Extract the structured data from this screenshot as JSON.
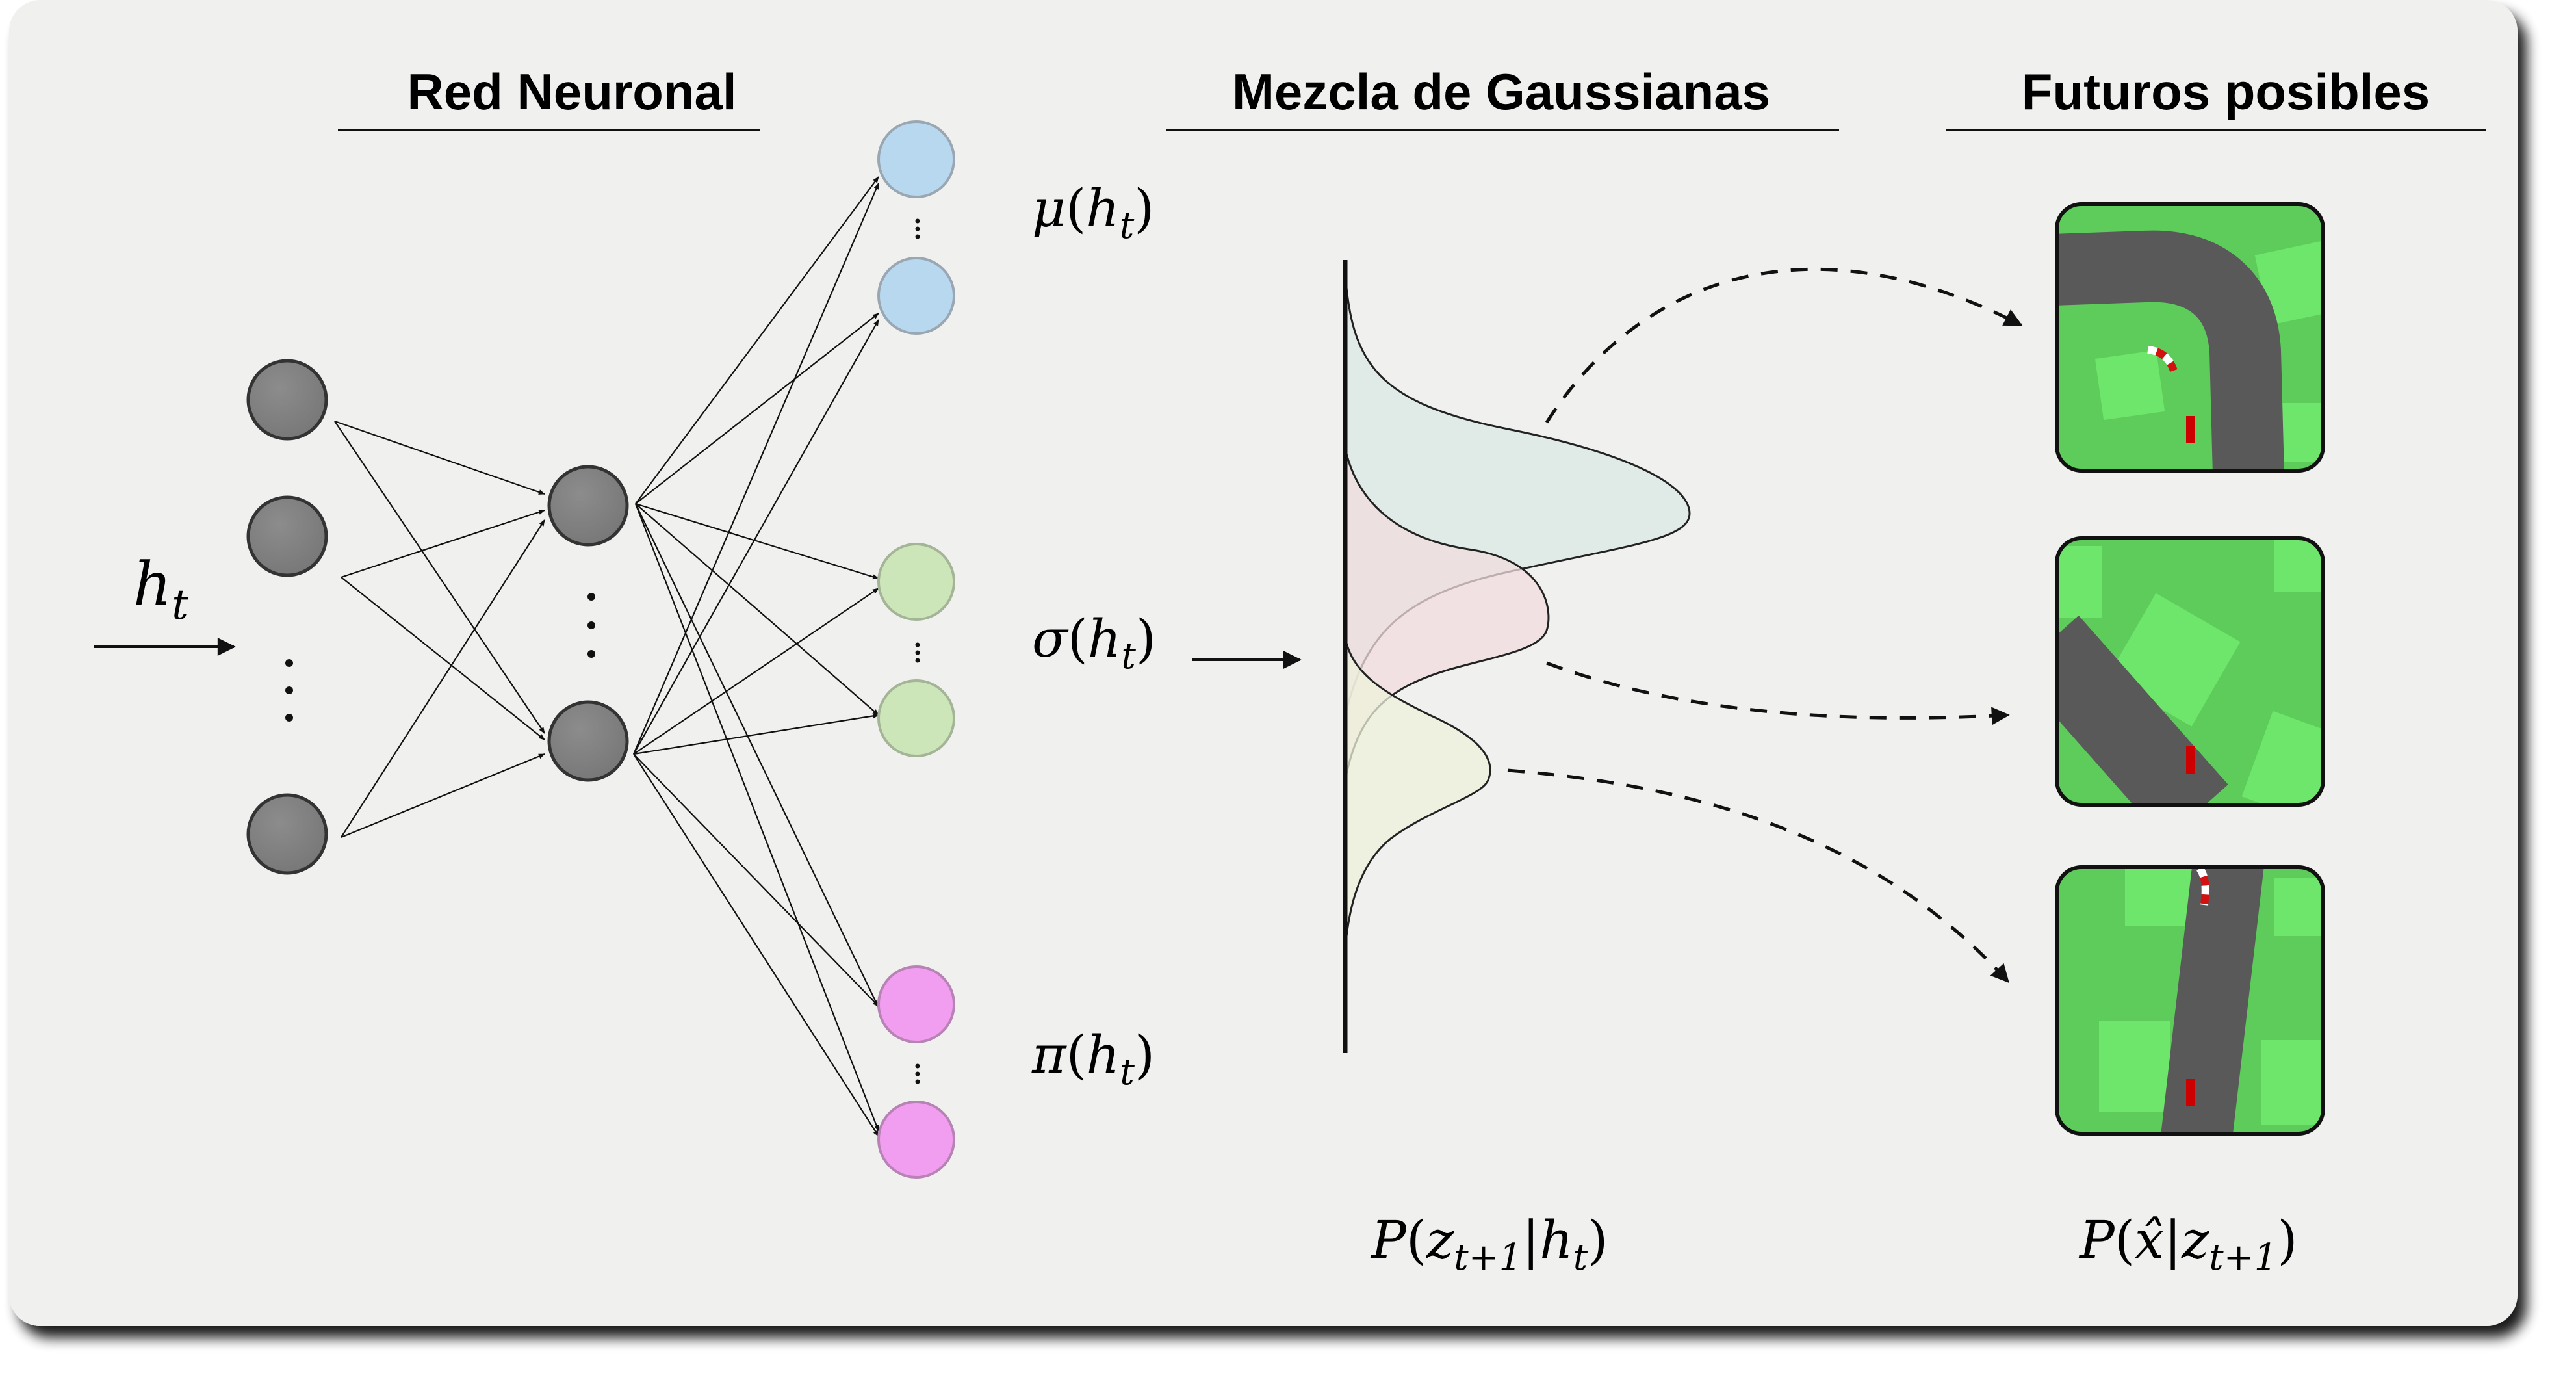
{
  "headings": {
    "network": "Red Neuronal",
    "mixture": "Mezcla de Gaussianas",
    "futures": "Futuros posibles"
  },
  "labels": {
    "input": "h_t",
    "mu": "μ(h_t)",
    "sigma": "σ(h_t)",
    "pi": "π(h_t)",
    "mixture_caption": "P(z_{t+1}|h_t)",
    "futures_caption": "P(x̂|z_{t+1})"
  },
  "colors": {
    "panel": "#f0f0ef",
    "neuron_hidden": "#808080",
    "neuron_mu": "#b7d8ee",
    "neuron_sigma": "#cde6b9",
    "neuron_pi": "#f19ef0",
    "gauss_1": "#dfeae6",
    "gauss_2": "#f2dde0",
    "gauss_3": "#eef2dc",
    "grass": "#5ecc5b",
    "grass_light": "#6ee56b",
    "road": "#595959"
  },
  "futures": [
    {
      "name": "future-1"
    },
    {
      "name": "future-2"
    },
    {
      "name": "future-3"
    }
  ]
}
